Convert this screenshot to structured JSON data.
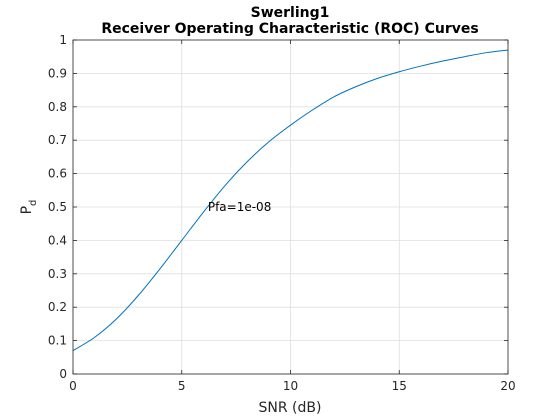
{
  "chart_data": {
    "type": "line",
    "title_line1": "Swerling1",
    "title_line2": "Receiver Operating Characteristic (ROC) Curves",
    "xlabel": "SNR (dB)",
    "ylabel_main": "P",
    "ylabel_sub": "d",
    "xlim": [
      0,
      20
    ],
    "ylim": [
      0,
      1
    ],
    "xticks": [
      0,
      5,
      10,
      15,
      20
    ],
    "yticks": [
      0,
      0.1,
      0.2,
      0.3,
      0.4,
      0.5,
      0.6,
      0.7,
      0.8,
      0.9,
      1
    ],
    "xtick_labels": [
      "0",
      "5",
      "10",
      "15",
      "20"
    ],
    "ytick_labels": [
      "0",
      "0.1",
      "0.2",
      "0.3",
      "0.4",
      "0.5",
      "0.6",
      "0.7",
      "0.8",
      "0.9",
      "1"
    ],
    "grid": true,
    "series": [
      {
        "color": "#0072bd",
        "x": [
          0,
          1,
          2,
          3,
          4,
          5,
          6,
          7,
          8,
          9,
          10,
          11,
          12,
          13,
          14,
          15,
          16,
          17,
          18,
          19,
          20
        ],
        "values": [
          0.07,
          0.11,
          0.165,
          0.235,
          0.315,
          0.4,
          0.485,
          0.565,
          0.635,
          0.695,
          0.745,
          0.79,
          0.83,
          0.86,
          0.885,
          0.905,
          0.922,
          0.937,
          0.95,
          0.962,
          0.97
        ]
      }
    ],
    "annotations": [
      {
        "text": "Pfa=1e-08",
        "x": 6.2,
        "y": 0.5
      }
    ]
  }
}
